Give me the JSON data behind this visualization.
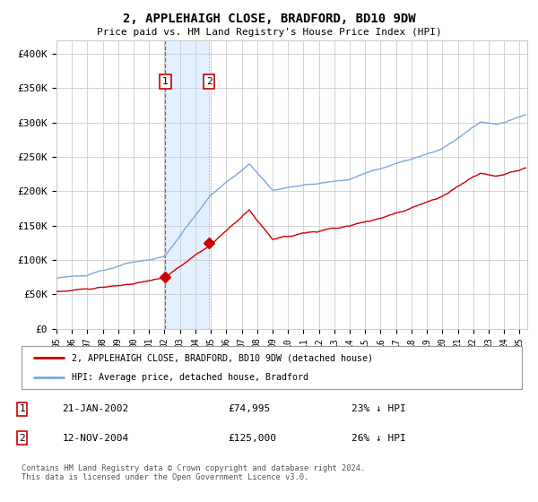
{
  "title": "2, APPLEHAIGH CLOSE, BRADFORD, BD10 9DW",
  "subtitle": "Price paid vs. HM Land Registry's House Price Index (HPI)",
  "ylabel_ticks": [
    "£0",
    "£50K",
    "£100K",
    "£150K",
    "£200K",
    "£250K",
    "£300K",
    "£350K",
    "£400K"
  ],
  "ytick_values": [
    0,
    50000,
    100000,
    150000,
    200000,
    250000,
    300000,
    350000,
    400000
  ],
  "ylim": [
    0,
    420000
  ],
  "xlim_start": 1995.0,
  "xlim_end": 2025.5,
  "hpi_color": "#7aaadd",
  "price_color": "#cc0000",
  "marker1_date": 2002.05,
  "marker1_price": 74995,
  "marker2_date": 2004.88,
  "marker2_price": 125000,
  "transaction1_label": "1",
  "transaction2_label": "2",
  "transaction1_date_str": "21-JAN-2002",
  "transaction1_price_str": "£74,995",
  "transaction1_hpi_str": "23% ↓ HPI",
  "transaction2_date_str": "12-NOV-2004",
  "transaction2_price_str": "£125,000",
  "transaction2_hpi_str": "26% ↓ HPI",
  "legend_property": "2, APPLEHAIGH CLOSE, BRADFORD, BD10 9DW (detached house)",
  "legend_hpi": "HPI: Average price, detached house, Bradford",
  "footer": "Contains HM Land Registry data © Crown copyright and database right 2024.\nThis data is licensed under the Open Government Licence v3.0.",
  "background_color": "#ffffff",
  "grid_color": "#cccccc",
  "span_color": "#ddeeff",
  "vline1_color": "#cc2222",
  "vline2_color": "#aaaacc"
}
